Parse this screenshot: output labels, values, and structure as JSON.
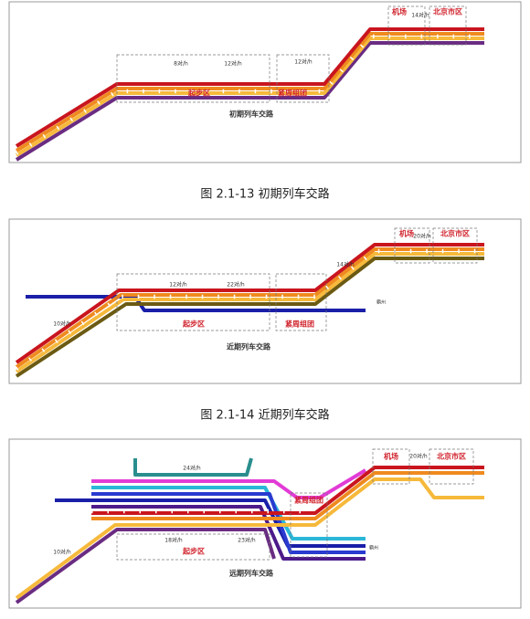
{
  "figures": [
    {
      "title": "初期列车交路",
      "caption": "图 2.1-13  初期列车交路",
      "zones": [
        "起步区",
        "紧周组团",
        "机场",
        "北京市区"
      ],
      "frequencies": [
        "8对/h",
        "12对/h",
        "12对/h",
        "14对/h"
      ]
    },
    {
      "title": "近期列车交路",
      "caption": "图 2.1-14  近期列车交路",
      "zones": [
        "起步区",
        "紧周组团",
        "机场",
        "北京市区"
      ],
      "frequencies": [
        "12对/h",
        "22对/h",
        "14对/h",
        "20对/h",
        "10对/h"
      ],
      "stations": [
        "霸州"
      ]
    },
    {
      "title": "远期列车交路",
      "zones": [
        "起步区",
        "紧周组团",
        "机场",
        "北京市区"
      ],
      "frequencies": [
        "24对/h",
        "18对/h",
        "23对/h",
        "20对/h",
        "10对/h"
      ],
      "stations": [
        "霸州"
      ]
    }
  ]
}
